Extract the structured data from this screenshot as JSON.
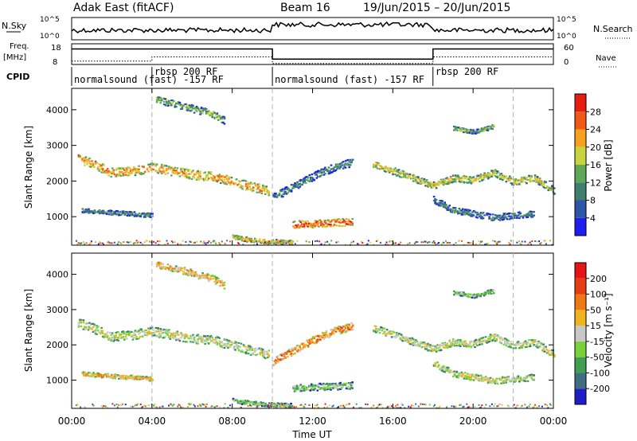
{
  "header": {
    "title": "Adak East (fitACF)",
    "beam": "Beam 16",
    "date_range": "19/Jun/2015 – 20/Jun/2015"
  },
  "strip_labels": {
    "nsky": "N.Sky",
    "nsky_tick_hi": "10^5",
    "nsky_tick_lo": "10^0",
    "nsearch": "N.Search",
    "nsearch_tick_hi": "10^5",
    "nsearch_tick_lo": "10^0",
    "freq": "Freq.",
    "freq_unit": "[MHz]",
    "freq_tick_hi": "18",
    "freq_tick_lo": "8",
    "nave": "Nave",
    "nave_tick_hi": "60",
    "nave_tick_lo": "0",
    "cpid": "CPID"
  },
  "cpid_segments": [
    {
      "label": "normalsound (fast) -157 RF",
      "start_h": 0,
      "end_h": 4
    },
    {
      "label": "rbsp 200 RF",
      "start_h": 4,
      "end_h": 10
    },
    {
      "label": "normalsound (fast) -157 RF",
      "start_h": 10,
      "end_h": 18
    },
    {
      "label": "rbsp 200 RF",
      "start_h": 18,
      "end_h": 22
    }
  ],
  "chart_data": [
    {
      "type": "heatmap",
      "id": "power",
      "ylabel": "Slant Range [km]",
      "yticks": [
        "1000",
        "2000",
        "3000",
        "4000"
      ],
      "ylim": [
        200,
        4600
      ],
      "xlim_h": [
        0,
        24
      ],
      "colorbar_label": "Power [dB]",
      "colorbar_ticks": [
        "4",
        "8",
        "12",
        "16",
        "20",
        "24",
        "28"
      ],
      "colors": [
        "#1e1ef0",
        "#2f55a8",
        "#3e7f6e",
        "#5ea858",
        "#c8d43c",
        "#f7a21e",
        "#f05a14",
        "#e61c10"
      ],
      "echo_bands": [
        {
          "points": [
            [
              0.3,
              2650
            ],
            [
              1,
              2500
            ],
            [
              2,
              2250
            ],
            [
              3,
              2300
            ],
            [
              4,
              2400
            ],
            [
              5,
              2300
            ],
            [
              6,
              2200
            ],
            [
              7,
              2150
            ],
            [
              8,
              2000
            ],
            [
              9,
              1850
            ],
            [
              9.8,
              1750
            ]
          ],
          "width_km": 260,
          "level": 5
        },
        {
          "points": [
            [
              4.2,
              4300
            ],
            [
              5,
              4200
            ],
            [
              6,
              4050
            ],
            [
              7,
              3900
            ],
            [
              7.6,
              3700
            ]
          ],
          "width_km": 200,
          "level": 3
        },
        {
          "points": [
            [
              10,
              1550
            ],
            [
              11,
              1850
            ],
            [
              12,
              2150
            ],
            [
              13,
              2400
            ],
            [
              14,
              2550
            ]
          ],
          "width_km": 220,
          "level": 2
        },
        {
          "points": [
            [
              11,
              800
            ],
            [
              12,
              820
            ],
            [
              13,
              850
            ],
            [
              14,
              870
            ]
          ],
          "width_km": 200,
          "level": 6
        },
        {
          "points": [
            [
              8,
              450
            ],
            [
              9,
              360
            ],
            [
              10,
              320
            ],
            [
              11,
              300
            ]
          ],
          "width_km": 120,
          "level": 4
        },
        {
          "points": [
            [
              15,
              2500
            ],
            [
              16.5,
              2200
            ],
            [
              18,
              1900
            ],
            [
              19,
              2100
            ],
            [
              20,
              2050
            ],
            [
              21,
              2250
            ],
            [
              22,
              2000
            ],
            [
              23,
              2100
            ],
            [
              24,
              1750
            ]
          ],
          "width_km": 200,
          "level": 4
        },
        {
          "points": [
            [
              18,
              1500
            ],
            [
              19,
              1200
            ],
            [
              20,
              1100
            ],
            [
              21,
              1000
            ],
            [
              22,
              1050
            ],
            [
              23,
              1100
            ]
          ],
          "width_km": 180,
          "level": 2
        },
        {
          "points": [
            [
              19,
              3500
            ],
            [
              20,
              3400
            ],
            [
              21,
              3550
            ]
          ],
          "width_km": 120,
          "level": 3
        },
        {
          "points": [
            [
              0.5,
              1200
            ],
            [
              1.5,
              1150
            ],
            [
              3,
              1100
            ],
            [
              4,
              1050
            ]
          ],
          "width_km": 120,
          "level": 2
        }
      ]
    },
    {
      "type": "heatmap",
      "id": "velocity",
      "xlabel": "Time UT",
      "ylabel": "Slant Range [km]",
      "yticks": [
        "1000",
        "2000",
        "3000",
        "4000"
      ],
      "xticks": [
        "00:00",
        "04:00",
        "08:00",
        "12:00",
        "16:00",
        "20:00",
        "00:00"
      ],
      "ylim": [
        200,
        4600
      ],
      "xlim_h": [
        0,
        24
      ],
      "colorbar_label": "Velocity [m s⁻¹]",
      "colorbar_ticks": [
        "200",
        "100",
        "50",
        "15",
        "-15",
        "-50",
        "-100",
        "-200"
      ],
      "colors": [
        "#1e1ec8",
        "#3e6e80",
        "#3ea050",
        "#78d23c",
        "#c8c8c8",
        "#f0b41e",
        "#f07814",
        "#e63c14",
        "#e61414"
      ],
      "echo_bands": [
        {
          "points": [
            [
              0.3,
              2650
            ],
            [
              1,
              2500
            ],
            [
              2,
              2250
            ],
            [
              3,
              2300
            ],
            [
              4,
              2400
            ],
            [
              5,
              2300
            ],
            [
              6,
              2200
            ],
            [
              7,
              2150
            ],
            [
              8,
              2000
            ],
            [
              9,
              1850
            ],
            [
              9.8,
              1750
            ]
          ],
          "width_km": 260,
          "level": 4
        },
        {
          "points": [
            [
              4.2,
              4300
            ],
            [
              5,
              4200
            ],
            [
              6,
              4050
            ],
            [
              7,
              3900
            ],
            [
              7.6,
              3700
            ]
          ],
          "width_km": 200,
          "level": 5
        },
        {
          "points": [
            [
              10,
              1550
            ],
            [
              11,
              1850
            ],
            [
              12,
              2150
            ],
            [
              13,
              2400
            ],
            [
              14,
              2550
            ]
          ],
          "width_km": 220,
          "level": 6
        },
        {
          "points": [
            [
              11,
              800
            ],
            [
              12,
              820
            ],
            [
              13,
              850
            ],
            [
              14,
              870
            ]
          ],
          "width_km": 200,
          "level": 3
        },
        {
          "points": [
            [
              8,
              450
            ],
            [
              9,
              360
            ],
            [
              10,
              320
            ],
            [
              11,
              300
            ]
          ],
          "width_km": 120,
          "level": 3
        },
        {
          "points": [
            [
              15,
              2500
            ],
            [
              16.5,
              2200
            ],
            [
              18,
              1900
            ],
            [
              19,
              2100
            ],
            [
              20,
              2050
            ],
            [
              21,
              2250
            ],
            [
              22,
              2000
            ],
            [
              23,
              2100
            ],
            [
              24,
              1750
            ]
          ],
          "width_km": 200,
          "level": 4
        },
        {
          "points": [
            [
              18,
              1500
            ],
            [
              19,
              1200
            ],
            [
              20,
              1100
            ],
            [
              21,
              1000
            ],
            [
              22,
              1050
            ],
            [
              23,
              1100
            ]
          ],
          "width_km": 180,
          "level": 4
        },
        {
          "points": [
            [
              19,
              3500
            ],
            [
              20,
              3400
            ],
            [
              21,
              3550
            ]
          ],
          "width_km": 120,
          "level": 3
        },
        {
          "points": [
            [
              0.5,
              1200
            ],
            [
              1.5,
              1150
            ],
            [
              3,
              1100
            ],
            [
              4,
              1050
            ]
          ],
          "width_km": 120,
          "level": 5
        }
      ]
    }
  ],
  "freq_series_mhz": [
    [
      0,
      15.5
    ],
    [
      10,
      15.5
    ],
    [
      10,
      10.6
    ],
    [
      18,
      10.6
    ],
    [
      18,
      15.5
    ],
    [
      24,
      15.5
    ]
  ],
  "nave_series": [
    [
      0,
      10
    ],
    [
      4,
      10
    ],
    [
      4,
      22
    ],
    [
      10,
      22
    ],
    [
      10,
      3
    ],
    [
      18,
      3
    ],
    [
      18,
      22
    ],
    [
      24,
      22
    ]
  ],
  "dashed_time_markers_h": [
    4,
    10,
    22
  ]
}
